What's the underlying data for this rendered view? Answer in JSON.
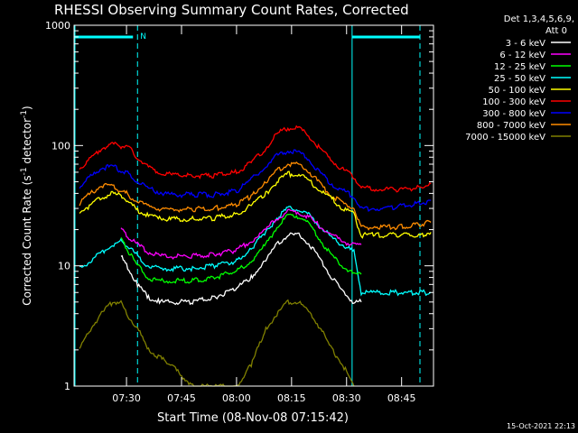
{
  "chart_data": {
    "type": "line",
    "title": "RHESSI Observing Summary Count Rates, Corrected",
    "xlabel": "Start Time (08-Nov-08 07:15:42)",
    "ylabel": "Corrected Count Rate (s⁻¹ detector⁻¹)",
    "ylabel_parts": {
      "main": "Corrected Count Rate (s",
      "sup1": "-1",
      "mid": " detector",
      "sup2": "-1",
      "end": ")"
    },
    "yscale": "log",
    "ylim": [
      1,
      1000
    ],
    "xlim_minutes": [
      0,
      98
    ],
    "y_ticks": [
      {
        "value": 1,
        "label": "1"
      },
      {
        "value": 10,
        "label": "10"
      },
      {
        "value": 100,
        "label": "100"
      },
      {
        "value": 1000,
        "label": "1000"
      }
    ],
    "x_ticks": [
      {
        "minute": 14.3,
        "label": "07:30"
      },
      {
        "minute": 29.3,
        "label": "07:45"
      },
      {
        "minute": 44.3,
        "label": "08:00"
      },
      {
        "minute": 59.3,
        "label": "08:15"
      },
      {
        "minute": 74.3,
        "label": "08:30"
      },
      {
        "minute": 89.3,
        "label": "08:45"
      }
    ],
    "legend": {
      "placement": "right",
      "header": [
        "Det 1,3,4,5,6,9,",
        "Att 0"
      ]
    },
    "gaps_minutes": [
      [
        17.3,
        76.3
      ]
    ],
    "night_marker": "N",
    "timestamp": "15-Oct-2021 22:13",
    "series": [
      {
        "name": "3 - 6 keV",
        "color": "#ffffff",
        "x": [
          12.8,
          14.3,
          17.3,
          20.3,
          23.3,
          26.3,
          32.3,
          38.3,
          44.3,
          48.3,
          52.3,
          55.3,
          58.3,
          61.3,
          64.3,
          67.3,
          70.3,
          73.3,
          76.3,
          78.3
        ],
        "y": [
          12,
          10,
          7,
          5.5,
          5,
          5,
          5,
          5.5,
          6.5,
          8,
          11,
          15,
          18,
          18,
          15,
          11,
          8,
          6,
          5,
          5
        ]
      },
      {
        "name": "6 - 12 keV",
        "color": "#ff00ff",
        "x": [
          12.8,
          14.3,
          17.3,
          20.3,
          23.3,
          26.3,
          32.3,
          38.3,
          44.3,
          48.3,
          52.3,
          55.3,
          58.3,
          61.3,
          64.3,
          67.3,
          70.3,
          73.3,
          76.3,
          78.3
        ],
        "y": [
          20,
          18,
          15,
          13,
          12,
          12,
          12,
          12.5,
          13.5,
          16,
          20,
          25,
          28,
          28,
          25,
          21,
          18,
          16,
          15,
          15
        ]
      },
      {
        "name": "12 - 25 keV",
        "color": "#00ff00",
        "x": [
          12.8,
          14.3,
          17.3,
          20.3,
          23.3,
          26.3,
          32.3,
          38.3,
          44.3,
          48.3,
          52.3,
          55.3,
          58.3,
          61.3,
          64.3,
          67.3,
          70.3,
          73.3,
          76.3,
          78.3
        ],
        "y": [
          17,
          14,
          10,
          8,
          7.5,
          7.5,
          7.5,
          8,
          9,
          11,
          15,
          21,
          26,
          26,
          22,
          16,
          12,
          10,
          8.5,
          8.5
        ]
      },
      {
        "name": "25 - 50 keV",
        "color": "#00ffff",
        "x": [
          1.5,
          4.5,
          7.5,
          10.5,
          12.8,
          14.3,
          17.3,
          20.3,
          23.3,
          26.3,
          32.3,
          38.3,
          44.3,
          48.3,
          52.3,
          55.3,
          58.3,
          61.3,
          64.3,
          67.3,
          70.3,
          73.3,
          76.3,
          78.3,
          82.3,
          88.3,
          94.3,
          97.3
        ],
        "y": [
          9.5,
          11,
          13,
          15,
          16,
          15,
          12,
          10,
          9.5,
          9.5,
          9.5,
          10,
          11,
          14,
          19,
          25,
          30,
          30,
          26,
          21,
          17,
          15,
          13,
          6,
          6,
          6,
          6,
          6
        ]
      },
      {
        "name": "50 - 100 keV",
        "color": "#ffff00",
        "x": [
          1.5,
          4.5,
          7.5,
          10.5,
          12.8,
          14.3,
          17.3,
          20.3,
          23.3,
          26.3,
          32.3,
          38.3,
          44.3,
          48.3,
          52.3,
          55.3,
          58.3,
          61.3,
          64.3,
          67.3,
          70.3,
          73.3,
          76.3,
          78.3,
          82.3,
          88.3,
          94.3,
          97.3
        ],
        "y": [
          28,
          32,
          37,
          40,
          38,
          35,
          29,
          26,
          25,
          24.5,
          24.5,
          25,
          27,
          32,
          40,
          50,
          58,
          58,
          50,
          42,
          36,
          30,
          27,
          18,
          18,
          18,
          18,
          19
        ]
      },
      {
        "name": "100 - 300 keV",
        "color": "#ff0000",
        "x": [
          1.5,
          4.5,
          7.5,
          10.5,
          12.8,
          14.3,
          17.3,
          20.3,
          23.3,
          26.3,
          32.3,
          38.3,
          44.3,
          48.3,
          52.3,
          55.3,
          58.3,
          61.3,
          64.3,
          67.3,
          70.3,
          73.3,
          76.3,
          78.3,
          82.3,
          88.3,
          94.3,
          97.3
        ],
        "y": [
          65,
          78,
          95,
          103,
          98,
          100,
          80,
          66,
          60,
          57,
          56,
          56,
          60,
          72,
          95,
          125,
          140,
          140,
          118,
          92,
          75,
          63,
          55,
          45,
          43,
          43,
          45,
          48
        ]
      },
      {
        "name": "300 - 800 keV",
        "color": "#0000ff",
        "x": [
          1.5,
          4.5,
          7.5,
          10.5,
          12.8,
          14.3,
          17.3,
          20.3,
          23.3,
          26.3,
          32.3,
          38.3,
          44.3,
          48.3,
          52.3,
          55.3,
          58.3,
          61.3,
          64.3,
          67.3,
          70.3,
          73.3,
          76.3,
          78.3,
          82.3,
          88.3,
          94.3,
          97.3
        ],
        "y": [
          45,
          55,
          65,
          67,
          62,
          60,
          50,
          44,
          41,
          39,
          39,
          39,
          42,
          52,
          68,
          82,
          90,
          88,
          75,
          58,
          48,
          42,
          38,
          30,
          30,
          31,
          33,
          35
        ]
      },
      {
        "name": "800 - 7000 keV",
        "color": "#ff8c00",
        "x": [
          1.5,
          4.5,
          7.5,
          10.5,
          12.8,
          14.3,
          17.3,
          20.3,
          23.3,
          26.3,
          32.3,
          38.3,
          44.3,
          48.3,
          52.3,
          55.3,
          58.3,
          61.3,
          64.3,
          67.3,
          70.3,
          73.3,
          76.3,
          78.3,
          82.3,
          88.3,
          94.3,
          97.3
        ],
        "y": [
          33,
          40,
          47,
          46,
          42,
          40,
          34,
          31,
          30,
          29.5,
          29.5,
          30,
          32,
          38,
          50,
          62,
          70,
          69,
          60,
          47,
          38,
          33,
          31,
          21,
          21,
          21,
          22,
          23
        ]
      },
      {
        "name": "7000 - 15000 keV",
        "color": "#808000",
        "x": [
          1.5,
          4.5,
          7.5,
          10.5,
          12.8,
          14.3,
          17.3,
          20.3,
          26.3,
          32.3,
          38.3,
          44.3,
          48.3,
          52.3,
          55.3,
          58.3,
          61.3,
          64.3,
          67.3,
          70.3,
          73.3,
          76.3
        ],
        "y": [
          2,
          3,
          4,
          5,
          5,
          4,
          3,
          2,
          1.5,
          1,
          1,
          1,
          1.5,
          3,
          4,
          5,
          5,
          4,
          3,
          2,
          1.5,
          1
        ]
      }
    ]
  }
}
